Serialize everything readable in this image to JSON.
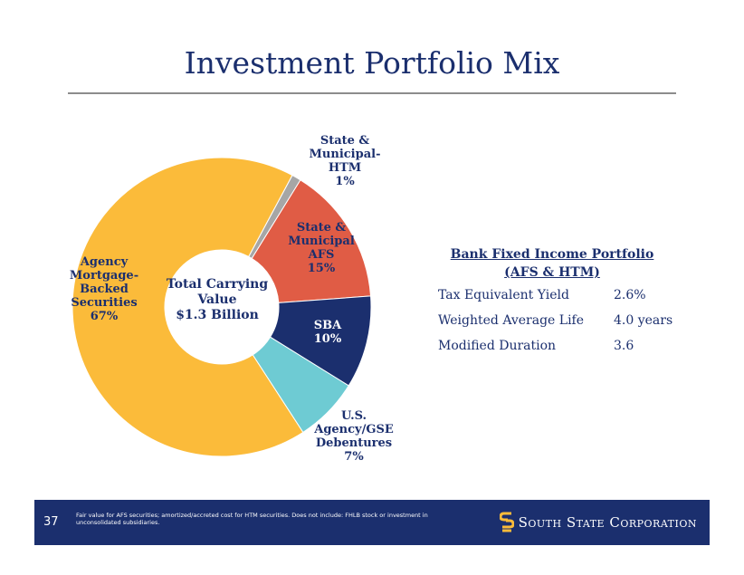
{
  "slide": {
    "title": "Investment Portfolio Mix",
    "page_number": "37",
    "footnote": "Fair value for AFS securities; amortized/accreted cost for HTM securities. Does not include: FHLB stock or investment in unconsolidated subsidiaries.",
    "brand": "South State Corporation",
    "brand_icon": "stacked-s-logo-icon"
  },
  "chart_data": {
    "type": "pie",
    "center_label": [
      "Total Carrying",
      "Value",
      "$1.3 Billion"
    ],
    "slices": [
      {
        "name": "Agency Mortgage-Backed Securities",
        "label_lines": [
          "Agency",
          "Mortgage-",
          "Backed",
          "Securities",
          "67%"
        ],
        "value": 67,
        "color": "#fbbb3a",
        "label_color": "#1b2f6e"
      },
      {
        "name": "State & Municipal-HTM",
        "label_lines": [
          "State &",
          "Municipal-",
          "HTM",
          "1%"
        ],
        "value": 1,
        "color": "#a6a6a6",
        "label_color": "#1b2f6e"
      },
      {
        "name": "State & Municipal AFS",
        "label_lines": [
          "State &",
          "Municipal",
          "AFS",
          "15%"
        ],
        "value": 15,
        "color": "#e05c45",
        "label_color": "#1b2f6e"
      },
      {
        "name": "SBA",
        "label_lines": [
          "SBA",
          "10%"
        ],
        "value": 10,
        "color": "#1b2f6e",
        "label_color": "#ffffff"
      },
      {
        "name": "U.S. Agency/GSE Debentures",
        "label_lines": [
          "U.S.",
          "Agency/GSE",
          "Debentures",
          "7%"
        ],
        "value": 7,
        "color": "#6ecbd3",
        "label_color": "#1b2f6e"
      }
    ],
    "table": {
      "title_lines": [
        "Bank Fixed Income Portfolio",
        "(AFS & HTM)"
      ],
      "rows": [
        {
          "metric": "Tax Equivalent Yield",
          "value": "2.6%"
        },
        {
          "metric": "Weighted Average Life",
          "value": "4.0 years"
        },
        {
          "metric": "Modified Duration",
          "value": "3.6"
        }
      ]
    }
  }
}
